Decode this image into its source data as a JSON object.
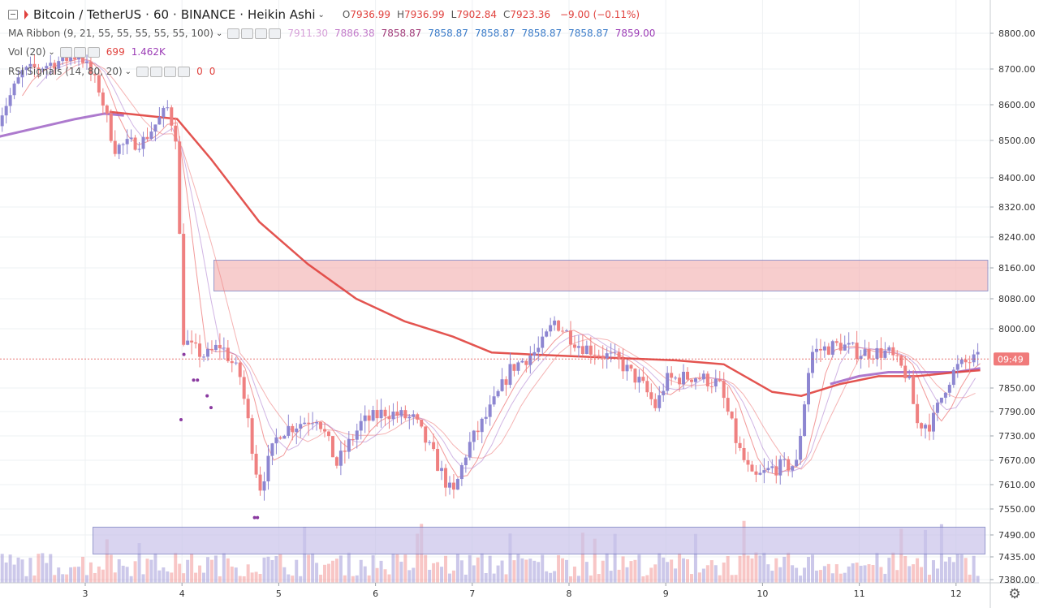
{
  "header": {
    "symbol": "Bitcoin / TetherUS",
    "interval": "60",
    "exchange": "BINANCE",
    "chart_style": "Heikin Ashi",
    "ohlc": [
      {
        "k": "O",
        "v": "7936.99"
      },
      {
        "k": "H",
        "v": "7936.99"
      },
      {
        "k": "L",
        "v": "7902.84"
      },
      {
        "k": "C",
        "v": "7923.36"
      }
    ],
    "change": "−9.00 (−0.11%)"
  },
  "indicators": {
    "ma_ribbon": {
      "label": "MA Ribbon (9, 21, 55, 55, 55, 55, 55, 100)",
      "values": [
        {
          "v": "7911.30",
          "color": "#d6a0d8"
        },
        {
          "v": "7886.38",
          "color": "#c27ac9"
        },
        {
          "v": "7858.87",
          "color": "#a03a78"
        },
        {
          "v": "7858.87",
          "color": "#3a7bc8"
        },
        {
          "v": "7858.87",
          "color": "#3a7bc8"
        },
        {
          "v": "7858.87",
          "color": "#3a7bc8"
        },
        {
          "v": "7858.87",
          "color": "#3a7bc8"
        },
        {
          "v": "7859.00",
          "color": "#9b3bb5"
        }
      ]
    },
    "volume": {
      "label": "Vol (20)",
      "values": [
        {
          "v": "699",
          "color": "#e0413d"
        },
        {
          "v": "1.462K",
          "color": "#9b3bb5"
        }
      ]
    },
    "rsi": {
      "label": "RSI Signals (14, 80, 20)",
      "values": [
        {
          "v": "0",
          "color": "#e0413d"
        },
        {
          "v": "0",
          "color": "#e0413d"
        }
      ]
    }
  },
  "price_tag": "09:49",
  "colors": {
    "up": "#8d86d1",
    "down": "#ef8080",
    "ma_long": "#e0413d",
    "ma_purple": "#a46bc9",
    "zone_red": "#f4b8b8",
    "zone_blue": "#c9c3ea",
    "zone_border": "#6a6fb8",
    "grid": "#eef0f3"
  },
  "chart_data": {
    "type": "candlestick",
    "x_tick_labels": [
      {
        "d": 3,
        "label": "3"
      },
      {
        "d": 4,
        "label": "4"
      },
      {
        "d": 5,
        "label": "5"
      },
      {
        "d": 6,
        "label": "6"
      },
      {
        "d": 7,
        "label": "7"
      },
      {
        "d": 8,
        "label": "8"
      },
      {
        "d": 9,
        "label": "9"
      },
      {
        "d": 10,
        "label": "10"
      },
      {
        "d": 11,
        "label": "11"
      },
      {
        "d": 12,
        "label": "12"
      }
    ],
    "xlim": [
      2.1,
      12.35
    ],
    "y_tick_labels": [
      {
        "v": 8800,
        "label": "8800.00"
      },
      {
        "v": 8700,
        "label": "8700.00"
      },
      {
        "v": 8600,
        "label": "8600.00"
      },
      {
        "v": 8500,
        "label": "8500.00"
      },
      {
        "v": 8400,
        "label": "8400.00"
      },
      {
        "v": 8320,
        "label": "8320.00"
      },
      {
        "v": 8240,
        "label": "8240.00"
      },
      {
        "v": 8160,
        "label": "8160.00"
      },
      {
        "v": 8080,
        "label": "8080.00"
      },
      {
        "v": 8000,
        "label": "8000.00"
      },
      {
        "v": 7850,
        "label": "7850.00"
      },
      {
        "v": 7790,
        "label": "7790.00"
      },
      {
        "v": 7730,
        "label": "7730.00"
      },
      {
        "v": 7670,
        "label": "7670.00"
      },
      {
        "v": 7610,
        "label": "7610.00"
      },
      {
        "v": 7550,
        "label": "7550.00"
      },
      {
        "v": 7490,
        "label": "7490.00"
      },
      {
        "v": 7435,
        "label": "7435.00"
      },
      {
        "v": 7380,
        "label": "7380.00"
      }
    ],
    "price_path": [
      [
        2.1,
        8560
      ],
      [
        2.35,
        8690
      ],
      [
        2.7,
        8720
      ],
      [
        2.95,
        8740
      ],
      [
        3.15,
        8640
      ],
      [
        3.3,
        8480
      ],
      [
        3.6,
        8500
      ],
      [
        3.85,
        8590
      ],
      [
        3.95,
        8500
      ],
      [
        4.0,
        7980
      ],
      [
        4.1,
        7950
      ],
      [
        4.25,
        7930
      ],
      [
        4.4,
        7960
      ],
      [
        4.6,
        7880
      ],
      [
        4.8,
        7600
      ],
      [
        5.0,
        7740
      ],
      [
        5.4,
        7780
      ],
      [
        5.6,
        7660
      ],
      [
        5.85,
        7760
      ],
      [
        6.1,
        7790
      ],
      [
        6.4,
        7770
      ],
      [
        6.6,
        7680
      ],
      [
        6.8,
        7580
      ],
      [
        6.95,
        7700
      ],
      [
        7.2,
        7800
      ],
      [
        7.4,
        7900
      ],
      [
        7.7,
        7950
      ],
      [
        7.85,
        8020
      ],
      [
        8.1,
        7960
      ],
      [
        8.5,
        7920
      ],
      [
        8.75,
        7860
      ],
      [
        8.9,
        7800
      ],
      [
        9.0,
        7870
      ],
      [
        9.3,
        7880
      ],
      [
        9.55,
        7860
      ],
      [
        9.75,
        7700
      ],
      [
        9.9,
        7620
      ],
      [
        10.1,
        7650
      ],
      [
        10.35,
        7660
      ],
      [
        10.5,
        7940
      ],
      [
        10.8,
        7960
      ],
      [
        11.0,
        7940
      ],
      [
        11.3,
        7940
      ],
      [
        11.5,
        7880
      ],
      [
        11.6,
        7760
      ],
      [
        11.75,
        7760
      ],
      [
        11.9,
        7860
      ],
      [
        12.0,
        7900
      ],
      [
        12.15,
        7920
      ],
      [
        12.25,
        7923
      ]
    ],
    "ma_long_path": [
      [
        3.25,
        8580
      ],
      [
        3.95,
        8560
      ],
      [
        4.3,
        8450
      ],
      [
        4.8,
        8280
      ],
      [
        5.3,
        8170
      ],
      [
        5.8,
        8080
      ],
      [
        6.3,
        8020
      ],
      [
        6.8,
        7980
      ],
      [
        7.2,
        7940
      ],
      [
        7.6,
        7935
      ],
      [
        8.1,
        7930
      ],
      [
        8.6,
        7925
      ],
      [
        9.1,
        7920
      ],
      [
        9.6,
        7910
      ],
      [
        10.1,
        7840
      ],
      [
        10.4,
        7830
      ],
      [
        10.8,
        7860
      ],
      [
        11.2,
        7880
      ],
      [
        11.6,
        7880
      ],
      [
        12.0,
        7890
      ],
      [
        12.25,
        7895
      ]
    ],
    "ma_purple_path": [
      [
        2.1,
        8510
      ],
      [
        2.5,
        8535
      ],
      [
        2.9,
        8560
      ],
      [
        3.2,
        8575
      ],
      [
        3.4,
        8570
      ]
    ],
    "ma_purple_path_2": [
      [
        10.7,
        7860
      ],
      [
        11.0,
        7880
      ],
      [
        11.3,
        7890
      ],
      [
        11.6,
        7890
      ],
      [
        12.0,
        7890
      ],
      [
        12.25,
        7900
      ]
    ],
    "zones": [
      {
        "x0": 4.33,
        "x1": 12.35,
        "y0": 8100,
        "y1": 8180,
        "kind": "resistance"
      },
      {
        "x0": 3.08,
        "x1": 12.3,
        "y0": 7442,
        "y1": 7508,
        "kind": "support"
      }
    ],
    "last_price": 7923.36,
    "volume_last": 699,
    "volume_ma": 1462
  }
}
